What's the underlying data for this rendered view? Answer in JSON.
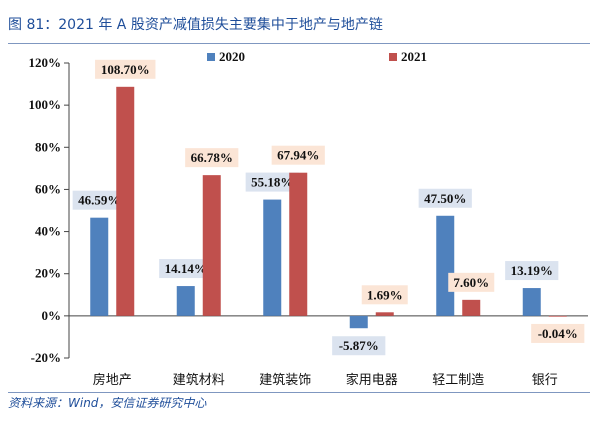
{
  "header": {
    "title": "图 81：2021 年 A 股资产减值损失主要集中于地产与地产链"
  },
  "footer": {
    "source": "资料来源：Wind，安信证券研究中心"
  },
  "colors": {
    "s2020": "#4f81bd",
    "s2021": "#c0504d",
    "label2020_bg": "#dbe3ef",
    "label2021_bg": "#fbe5d6",
    "title": "#1f4e9a"
  },
  "chart_data": {
    "type": "bar",
    "categories": [
      "房地产",
      "建筑材料",
      "建筑装饰",
      "家用电器",
      "轻工制造",
      "银行"
    ],
    "series": [
      {
        "name": "2020",
        "values": [
          46.59,
          14.14,
          55.18,
          -5.87,
          47.5,
          13.19
        ],
        "labels": [
          "46.59%",
          "14.14%",
          "55.18%",
          "-5.87%",
          "47.50%",
          "13.19%"
        ]
      },
      {
        "name": "2021",
        "values": [
          108.7,
          66.78,
          67.94,
          1.69,
          7.6,
          -0.04
        ],
        "labels": [
          "108.70%",
          "66.78%",
          "67.94%",
          "1.69%",
          "7.60%",
          "-0.04%"
        ]
      }
    ],
    "yticks": [
      "-20%",
      "0%",
      "20%",
      "40%",
      "60%",
      "80%",
      "100%",
      "120%"
    ],
    "ylim": [
      -20,
      120
    ],
    "grid": false,
    "legend": "top-center",
    "title": "",
    "xlabel": "",
    "ylabel": ""
  }
}
